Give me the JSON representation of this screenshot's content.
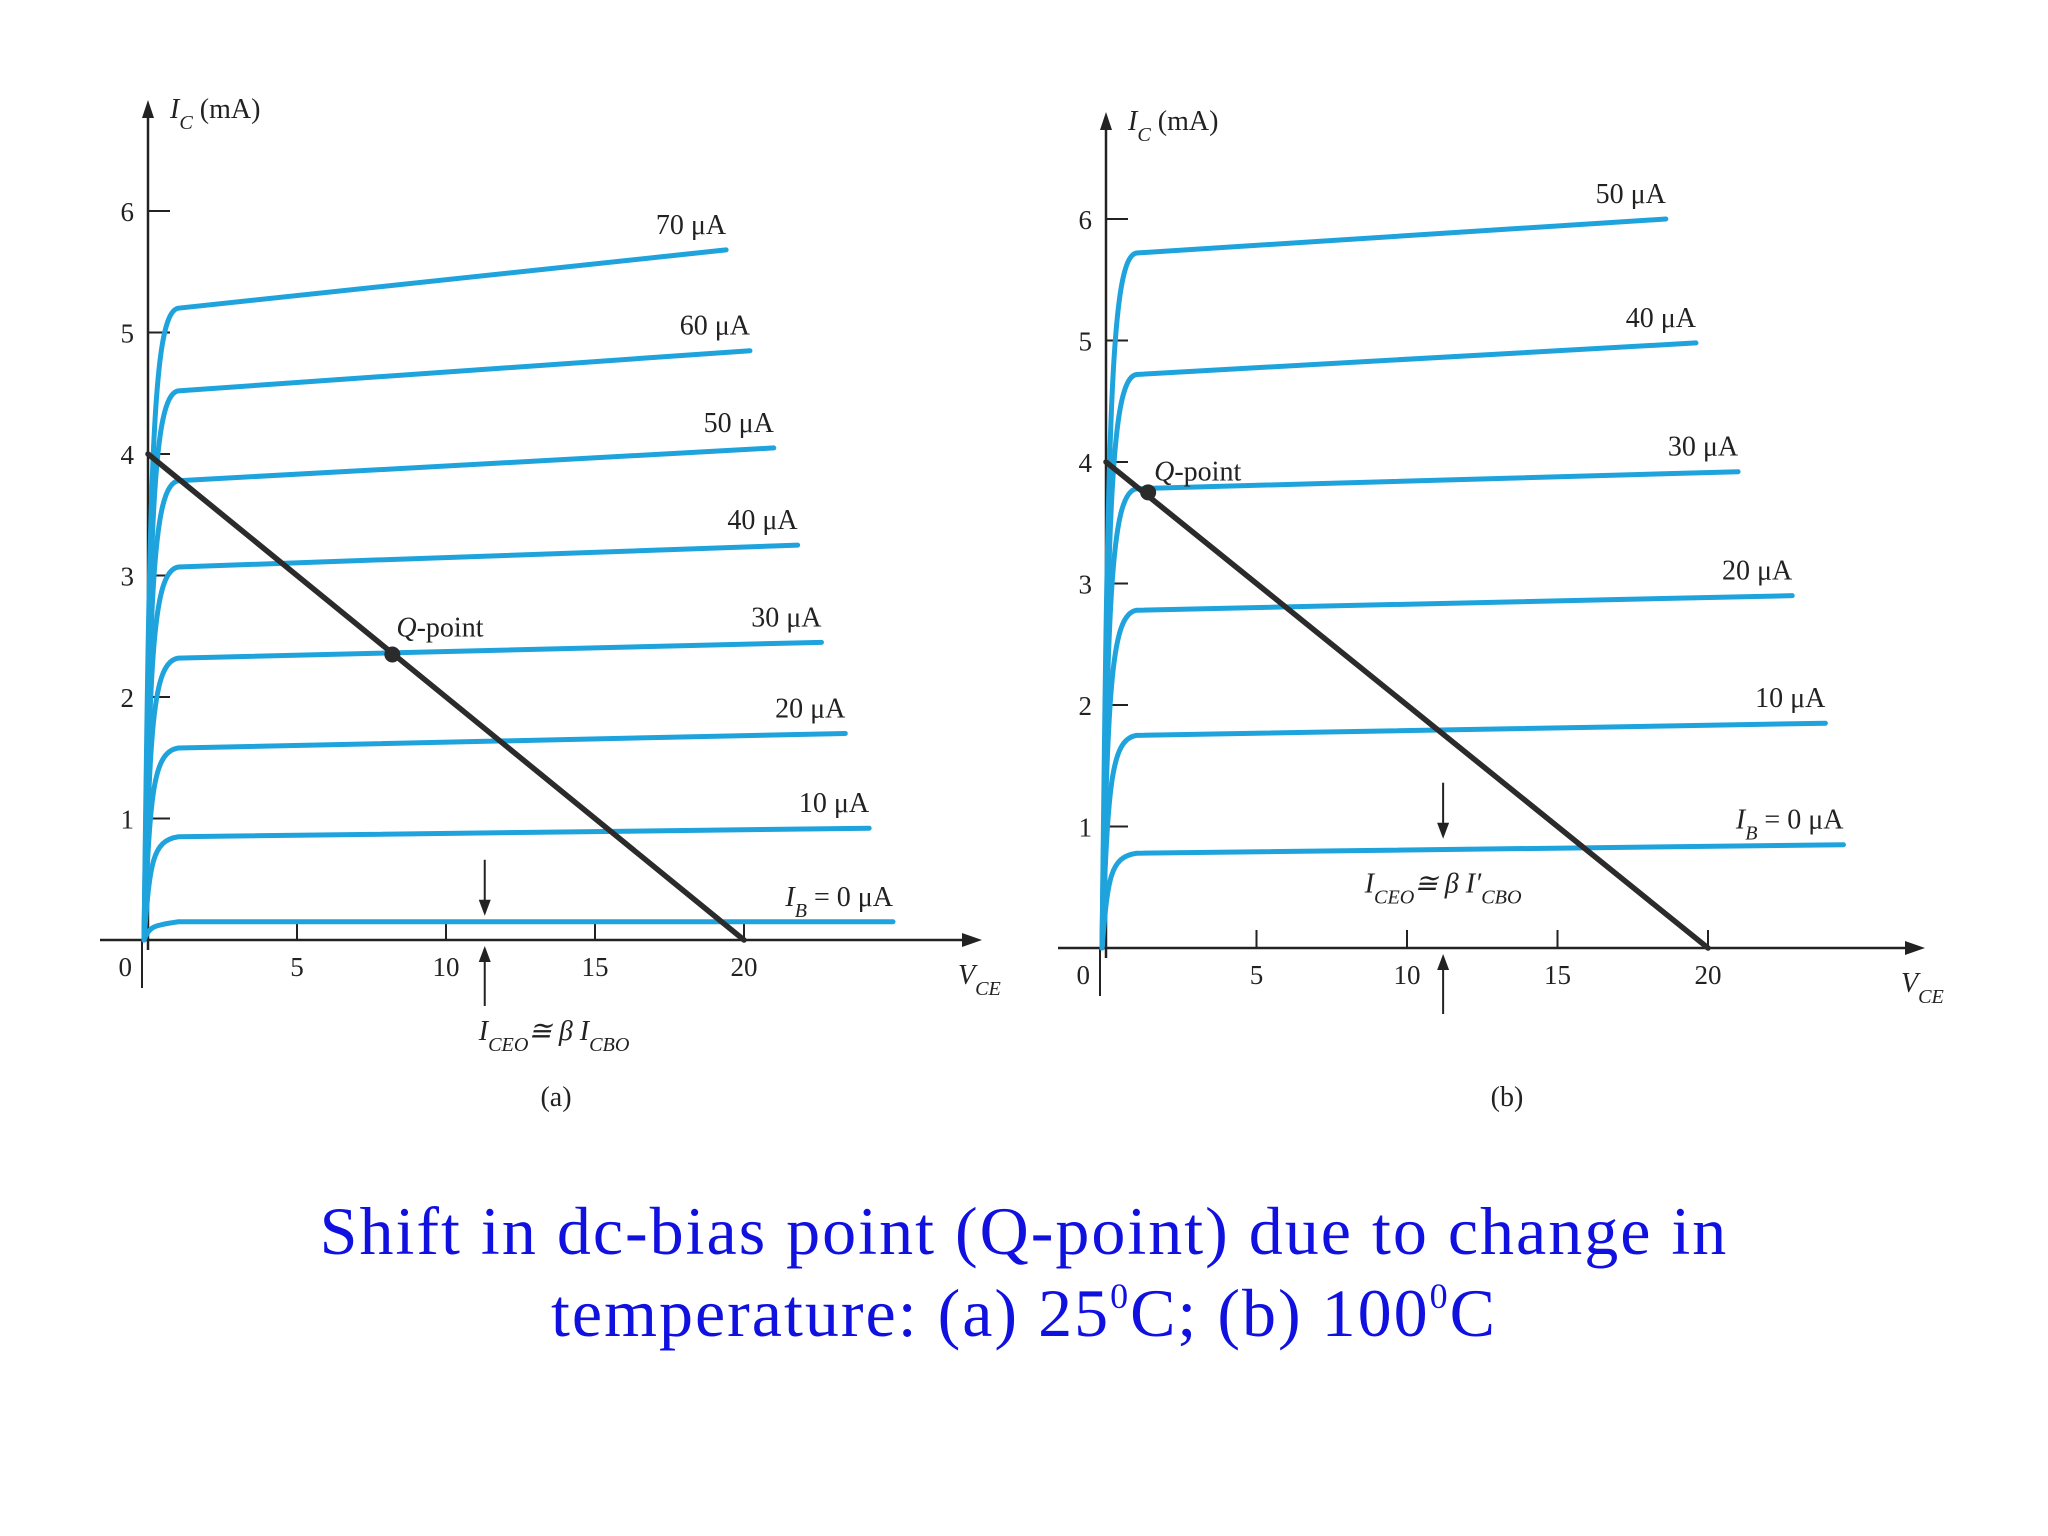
{
  "caption": {
    "line1": "Shift in dc-bias point (Q-point) due to change in",
    "line2_prefix": "temperature: (a) 25",
    "sup1": "0",
    "line2_mid": "C; (b) 100",
    "sup2": "0",
    "line2_suffix": "C"
  },
  "colors": {
    "curve": "#1ea3dc",
    "loadline": "#2b2b2b",
    "axis": "#222222",
    "caption": "#1010e0"
  },
  "chart_data": [
    {
      "type": "line",
      "panel_label": "(a)",
      "ylabel": "I_C (mA)",
      "xlabel": "V_CE",
      "xlim": [
        0,
        27
      ],
      "ylim": [
        0,
        6.8
      ],
      "xticks": [
        5,
        10,
        15,
        20
      ],
      "yticks": [
        1,
        2,
        3,
        4,
        5,
        6
      ],
      "origin_label": "0",
      "series": [
        {
          "name": "I_B = 0 μA",
          "knee": 0.15,
          "end_x": 25,
          "end": 0.15
        },
        {
          "name": "10 μA",
          "knee": 0.85,
          "end_x": 24.2,
          "end": 0.92
        },
        {
          "name": "20 μA",
          "knee": 1.58,
          "end_x": 23.4,
          "end": 1.7
        },
        {
          "name": "30 μA",
          "knee": 2.32,
          "end_x": 22.6,
          "end": 2.45
        },
        {
          "name": "40 μA",
          "knee": 3.07,
          "end_x": 21.8,
          "end": 3.25
        },
        {
          "name": "50 μA",
          "knee": 3.78,
          "end_x": 21.0,
          "end": 4.05
        },
        {
          "name": "60 μA",
          "knee": 4.52,
          "end_x": 20.2,
          "end": 4.85
        },
        {
          "name": "70 μA",
          "knee": 5.2,
          "end_x": 19.4,
          "end": 5.68
        }
      ],
      "load_line": {
        "x": [
          0,
          20
        ],
        "y": [
          4,
          0
        ]
      },
      "q_point": {
        "label": "Q-point",
        "x": 8.2,
        "y": 2.35
      },
      "annotation": {
        "text_main": "I",
        "text_sub1": "CEO",
        "text_rel": "≅ β I",
        "text_sub2": "CBO",
        "x": 11.3,
        "y": 0.15
      }
    },
    {
      "type": "line",
      "panel_label": "(b)",
      "ylabel": "I_C (mA)",
      "xlabel": "V_CE",
      "xlim": [
        0,
        27
      ],
      "ylim": [
        0,
        6.8
      ],
      "xticks": [
        5,
        10,
        15,
        20
      ],
      "yticks": [
        1,
        2,
        3,
        4,
        5,
        6
      ],
      "origin_label": "0",
      "series": [
        {
          "name": "I_B = 0 μA",
          "knee": 0.78,
          "end_x": 24.5,
          "end": 0.85
        },
        {
          "name": "10 μA",
          "knee": 1.75,
          "end_x": 23.9,
          "end": 1.85
        },
        {
          "name": "20 μA",
          "knee": 2.78,
          "end_x": 22.8,
          "end": 2.9
        },
        {
          "name": "30 μA",
          "knee": 3.78,
          "end_x": 21.0,
          "end": 3.92
        },
        {
          "name": "40 μA",
          "knee": 4.72,
          "end_x": 19.6,
          "end": 4.98
        },
        {
          "name": "50 μA",
          "knee": 5.72,
          "end_x": 18.6,
          "end": 6.0
        }
      ],
      "load_line": {
        "x": [
          0,
          20
        ],
        "y": [
          4,
          0
        ]
      },
      "q_point": {
        "label": "Q-point",
        "x": 1.4,
        "y": 3.75
      },
      "annotation": {
        "text_main": "I",
        "text_sub1": "CEO",
        "text_rel": "≅ β I",
        "text_sub2": "CBO",
        "prime": "′",
        "x": 11.2,
        "y": 0.85
      }
    }
  ]
}
